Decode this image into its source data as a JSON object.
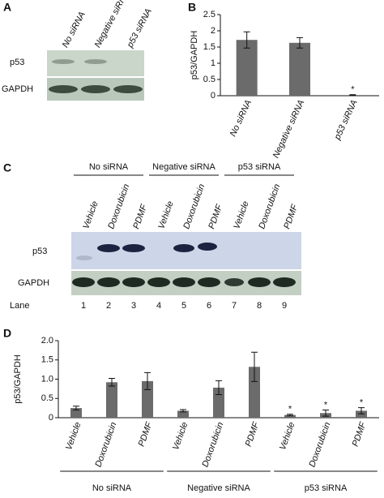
{
  "panels": {
    "A": {
      "label": "A",
      "columns": [
        "No siRNA",
        "Negative siRNA",
        "p53 siRNA"
      ],
      "rows": [
        "p53",
        "GAPDH"
      ]
    },
    "C": {
      "label": "C",
      "groups": [
        "No siRNA",
        "Negative siRNA",
        "p53 siRNA"
      ],
      "lanes": [
        "Vehicle",
        "Doxorubicin",
        "PDMF",
        "Vehicle",
        "Doxorubicin",
        "PDMF",
        "Vehicle",
        "Doxorubicin",
        "PDMF"
      ],
      "rows": [
        "p53",
        "GAPDH"
      ],
      "lane_title": "Lane",
      "lane_numbers": [
        1,
        2,
        3,
        4,
        5,
        6,
        7,
        8,
        9
      ]
    }
  },
  "chart_data": [
    {
      "type": "bar",
      "panel": "B",
      "ylabel": "p53/GAPDH",
      "categories": [
        "No siRNA",
        "Negative siRNA",
        "p53 siRNA"
      ],
      "series": [
        {
          "color": "#6b6b6b",
          "values": [
            1.72,
            1.63,
            0.02
          ],
          "errors": [
            0.25,
            0.16,
            0.01
          ]
        }
      ],
      "ylim": [
        0,
        2.5
      ],
      "yticks": [
        0,
        0.5,
        1,
        1.5,
        2,
        2.5
      ],
      "annotations": [
        {
          "category": 2,
          "text": "*"
        }
      ]
    },
    {
      "type": "bar",
      "panel": "D",
      "ylabel": "p53/GAPDH",
      "categories": [
        "Vehicle",
        "Doxorubicin",
        "PDMF",
        "Vehicle",
        "Doxorubicin",
        "PDMF",
        "Vehicle",
        "Doxorubicin",
        "PDMF"
      ],
      "series": [
        {
          "color": "#6b6b6b",
          "values": [
            0.25,
            0.92,
            0.95,
            0.18,
            0.78,
            1.32,
            0.07,
            0.12,
            0.18
          ],
          "errors": [
            0.05,
            0.1,
            0.22,
            0.03,
            0.18,
            0.38,
            0.02,
            0.08,
            0.08
          ]
        }
      ],
      "ylim": [
        0,
        2
      ],
      "yticks": [
        0,
        0.5,
        {
          "value": 1,
          "label": "1.0"
        },
        1.5,
        {
          "value": 2,
          "label": "2.0"
        }
      ],
      "annotations": [
        {
          "category": 6,
          "text": "*"
        },
        {
          "category": 7,
          "text": "*"
        },
        {
          "category": 8,
          "text": "*"
        }
      ],
      "groups": [
        {
          "name": "No siRNA",
          "size": 3
        },
        {
          "name": "Negative siRNA",
          "size": 3
        },
        {
          "name": "p53 siRNA",
          "size": 3
        }
      ]
    }
  ]
}
